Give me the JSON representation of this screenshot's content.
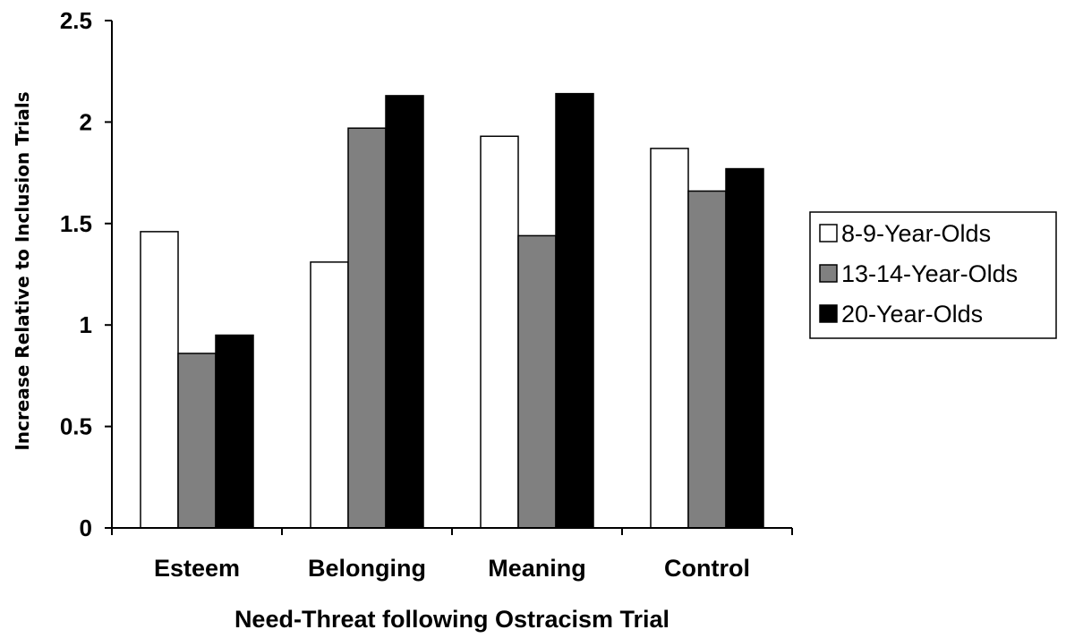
{
  "chart_data": {
    "type": "bar",
    "title": "",
    "xlabel": "Need-Threat following Ostracism Trial",
    "ylabel": "Increase Relative to Inclusion Trials",
    "categories": [
      "Esteem",
      "Belonging",
      "Meaning",
      "Control"
    ],
    "series": [
      {
        "name": "8-9-Year-Olds",
        "color": "#ffffff",
        "values": [
          1.46,
          1.31,
          1.93,
          1.87
        ]
      },
      {
        "name": "13-14-Year-Olds",
        "color": "#808080",
        "values": [
          0.86,
          1.97,
          1.44,
          1.66
        ]
      },
      {
        "name": "20-Year-Olds",
        "color": "#000000",
        "values": [
          0.95,
          2.13,
          2.14,
          1.77
        ]
      }
    ],
    "ylim": [
      0,
      2.5
    ],
    "yticks": [
      0,
      0.5,
      1,
      1.5,
      2,
      2.5
    ],
    "ytick_labels": [
      "0",
      "0.5",
      "1",
      "1.5",
      "2",
      "2.5"
    ],
    "grid": false,
    "legend_position": "right"
  }
}
